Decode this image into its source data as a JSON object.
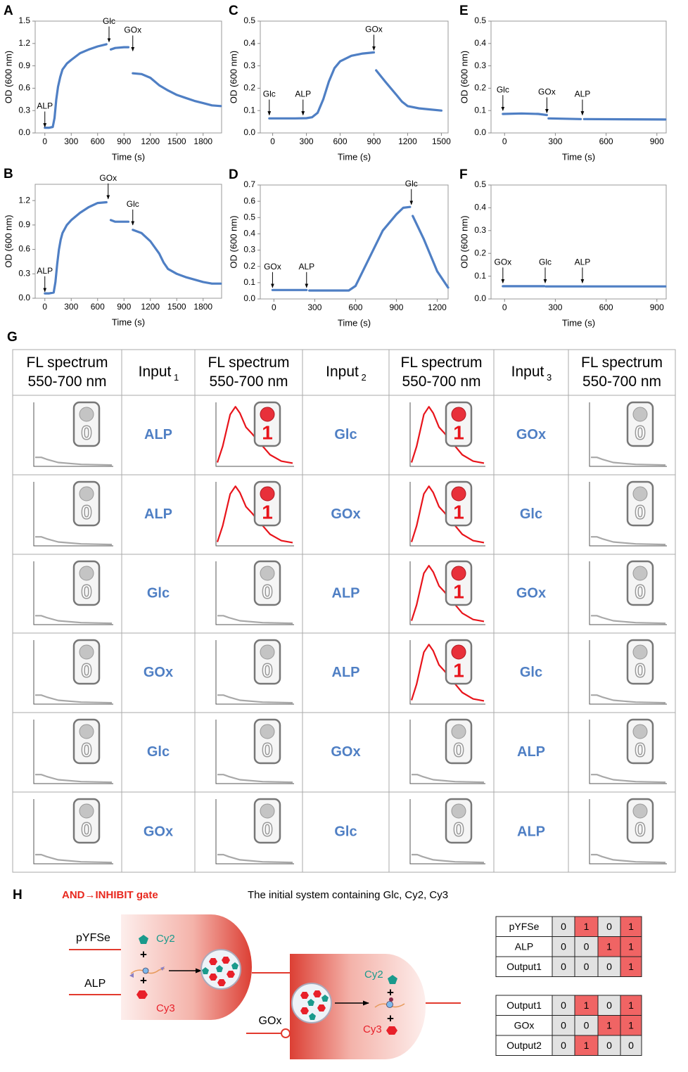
{
  "chart_data": [
    {
      "type": "line",
      "label": "A",
      "xlabel": "Time (s)",
      "ylabel": "OD (600 nm)",
      "color": "#4f7fc4",
      "xlim": [
        -110,
        2010
      ],
      "ylim": [
        0,
        1.5
      ],
      "xticks": [
        0,
        300,
        600,
        900,
        1200,
        1500,
        1800
      ],
      "yticks": [
        {
          "value": 0,
          "label": "0.0"
        },
        0.3,
        0.6,
        0.9,
        1.2,
        1.5
      ],
      "x": [
        0,
        50,
        90,
        110,
        130,
        150,
        175,
        200,
        250,
        300,
        400,
        500,
        600,
        700,
        720,
        750,
        800,
        900,
        950,
        980,
        1000,
        1100,
        1200,
        1300,
        1400,
        1500,
        1600,
        1700,
        1800,
        1900,
        2000
      ],
      "values": [
        0.07,
        0.07,
        0.08,
        0.2,
        0.45,
        0.62,
        0.75,
        0.85,
        0.93,
        0.98,
        1.07,
        1.12,
        1.16,
        1.19,
        null,
        1.12,
        1.14,
        1.15,
        1.15,
        null,
        0.8,
        0.79,
        0.74,
        0.64,
        0.57,
        0.51,
        0.47,
        0.43,
        0.4,
        0.37,
        0.36
      ],
      "annotations": [
        {
          "text": "ALP",
          "x": 0,
          "y": 0.08
        },
        {
          "text": "Glc",
          "x": 730,
          "y": 1.22
        },
        {
          "text": "GOx",
          "x": 1000,
          "y": 1.1
        }
      ]
    },
    {
      "type": "line",
      "label": "B",
      "xlabel": "Time (s)",
      "ylabel": "OD (600 nm)",
      "color": "#4f7fc4",
      "xlim": [
        -110,
        2010
      ],
      "ylim": [
        0,
        1.4
      ],
      "xticks": [
        0,
        300,
        600,
        900,
        1200,
        1500,
        1800
      ],
      "yticks": [
        {
          "value": 0,
          "label": "0.0"
        },
        0.3,
        0.6,
        0.9,
        1.2
      ],
      "x": [
        0,
        50,
        100,
        120,
        140,
        160,
        180,
        200,
        250,
        300,
        400,
        500,
        600,
        700,
        720,
        750,
        800,
        900,
        950,
        980,
        1000,
        1100,
        1200,
        1300,
        1350,
        1400,
        1500,
        1600,
        1700,
        1800,
        1900,
        2000
      ],
      "values": [
        0.06,
        0.06,
        0.07,
        0.2,
        0.42,
        0.6,
        0.72,
        0.8,
        0.9,
        0.96,
        1.05,
        1.12,
        1.17,
        1.18,
        null,
        0.96,
        0.94,
        0.94,
        0.94,
        null,
        0.84,
        0.8,
        0.7,
        0.55,
        0.44,
        0.36,
        0.3,
        0.26,
        0.23,
        0.2,
        0.18,
        0.18
      ],
      "annotations": [
        {
          "text": "ALP",
          "x": 0,
          "y": 0.08
        },
        {
          "text": "GOx",
          "x": 720,
          "y": 1.22
        },
        {
          "text": "Glc",
          "x": 1000,
          "y": 0.9
        }
      ]
    },
    {
      "type": "line",
      "label": "C",
      "xlabel": "Time (s)",
      "ylabel": "OD (600 nm)",
      "color": "#4f7fc4",
      "xlim": [
        -110,
        1560
      ],
      "ylim": [
        0,
        0.5
      ],
      "xticks": [
        0,
        300,
        600,
        900,
        1200,
        1500
      ],
      "yticks": [
        {
          "value": 0,
          "label": "0.0"
        },
        0.1,
        0.2,
        0.3,
        0.4,
        0.5
      ],
      "x": [
        -30,
        100,
        200,
        300,
        350,
        400,
        450,
        500,
        550,
        600,
        700,
        800,
        900,
        910,
        920,
        1000,
        1100,
        1150,
        1200,
        1300,
        1400,
        1500
      ],
      "values": [
        0.065,
        0.065,
        0.065,
        0.066,
        0.07,
        0.09,
        0.15,
        0.23,
        0.29,
        0.32,
        0.345,
        0.355,
        0.36,
        null,
        0.28,
        0.23,
        0.17,
        0.14,
        0.12,
        0.11,
        0.105,
        0.1
      ],
      "annotations": [
        {
          "text": "Glc",
          "x": -30,
          "y": 0.08
        },
        {
          "text": "ALP",
          "x": 270,
          "y": 0.08
        },
        {
          "text": "GOx",
          "x": 900,
          "y": 0.37
        }
      ]
    },
    {
      "type": "line",
      "label": "D",
      "xlabel": "Time (s)",
      "ylabel": "OD (600 nm)",
      "color": "#4f7fc4",
      "xlim": [
        -100,
        1280
      ],
      "ylim": [
        0,
        0.7
      ],
      "xticks": [
        0,
        300,
        600,
        900,
        1200
      ],
      "yticks": [
        {
          "value": 0,
          "label": "0.0"
        },
        0.1,
        0.2,
        0.3,
        0.4,
        0.5,
        0.6,
        0.7
      ],
      "x": [
        -10,
        100,
        240,
        250,
        260,
        400,
        550,
        600,
        700,
        800,
        900,
        950,
        1000,
        1010,
        1020,
        1100,
        1200,
        1280
      ],
      "values": [
        0.055,
        0.055,
        0.055,
        null,
        0.052,
        0.052,
        0.052,
        0.08,
        0.25,
        0.42,
        0.52,
        0.56,
        0.565,
        null,
        0.51,
        0.37,
        0.17,
        0.07
      ],
      "annotations": [
        {
          "text": "GOx",
          "x": -10,
          "y": 0.07
        },
        {
          "text": "ALP",
          "x": 240,
          "y": 0.07
        },
        {
          "text": "Glc",
          "x": 1010,
          "y": 0.58
        }
      ]
    },
    {
      "type": "line",
      "label": "E",
      "xlabel": "Time (s)",
      "ylabel": "OD (600 nm)",
      "color": "#4f7fc4",
      "xlim": [
        -80,
        955
      ],
      "ylim": [
        0,
        0.5
      ],
      "xticks": [
        0,
        300,
        600,
        900
      ],
      "yticks": [
        {
          "value": 0,
          "label": "0.0"
        },
        0.1,
        0.2,
        0.3,
        0.4,
        0.5
      ],
      "x": [
        -10,
        100,
        200,
        250,
        255,
        260,
        450,
        460,
        470,
        950
      ],
      "values": [
        0.085,
        0.087,
        0.085,
        0.08,
        null,
        0.065,
        0.062,
        null,
        0.062,
        0.06
      ],
      "annotations": [
        {
          "text": "Glc",
          "x": -10,
          "y": 0.1
        },
        {
          "text": "GOx",
          "x": 250,
          "y": 0.09
        },
        {
          "text": "ALP",
          "x": 460,
          "y": 0.08
        }
      ]
    },
    {
      "type": "line",
      "label": "F",
      "xlabel": "Time (s)",
      "ylabel": "OD (600 nm)",
      "color": "#4f7fc4",
      "xlim": [
        -80,
        955
      ],
      "ylim": [
        0,
        0.5
      ],
      "xticks": [
        0,
        300,
        600,
        900
      ],
      "yticks": [
        {
          "value": 0,
          "label": "0.0"
        },
        0.1,
        0.2,
        0.3,
        0.4,
        0.5
      ],
      "x": [
        -10,
        235,
        240,
        245,
        455,
        460,
        465,
        950
      ],
      "values": [
        0.056,
        0.056,
        null,
        0.055,
        0.055,
        null,
        0.055,
        0.055
      ],
      "annotations": [
        {
          "text": "GOx",
          "x": -10,
          "y": 0.07
        },
        {
          "text": "Glc",
          "x": 240,
          "y": 0.07
        },
        {
          "text": "ALP",
          "x": 460,
          "y": 0.07
        }
      ]
    }
  ],
  "table_g": {
    "label": "G",
    "header": [
      {
        "lines": [
          "FL spectrum",
          "550-700 nm"
        ]
      },
      {
        "text": "Input",
        "sub": "1"
      },
      {
        "lines": [
          "FL spectrum",
          "550-700 nm"
        ]
      },
      {
        "text": "Input",
        "sub": "2"
      },
      {
        "lines": [
          "FL spectrum",
          "550-700 nm"
        ]
      },
      {
        "text": "Input",
        "sub": "3"
      },
      {
        "lines": [
          "FL spectrum",
          "550-700 nm"
        ]
      }
    ],
    "rows": [
      [
        "0",
        "ALP",
        "1",
        "Glc",
        "1",
        "GOx",
        "0"
      ],
      [
        "0",
        "ALP",
        "1",
        "GOx",
        "1",
        "Glc",
        "0"
      ],
      [
        "0",
        "Glc",
        "0",
        "ALP",
        "1",
        "GOx",
        "0"
      ],
      [
        "0",
        "GOx",
        "0",
        "ALP",
        "1",
        "Glc",
        "0"
      ],
      [
        "0",
        "Glc",
        "0",
        "GOx",
        "0",
        "ALP",
        "0"
      ],
      [
        "0",
        "GOx",
        "0",
        "Glc",
        "0",
        "ALP",
        "0"
      ]
    ]
  },
  "diagram_h": {
    "label": "H",
    "title": "AND→INHIBIT gate",
    "subtitle": "The initial system containing Glc, Cy2, Cy3",
    "gate1": {
      "input1": "pYFSe",
      "input2": "ALP",
      "cy2": "Cy2",
      "cy3": "Cy3",
      "plus": "+"
    },
    "gate2": {
      "inhibitor": "GOx",
      "cy2": "Cy2",
      "cy3": "Cy3",
      "plus": "+"
    },
    "truth_tables": [
      {
        "rows": [
          [
            "pYFSe",
            0,
            1,
            0,
            1
          ],
          [
            "ALP",
            0,
            0,
            1,
            1
          ],
          [
            "Output1",
            0,
            0,
            0,
            1
          ]
        ]
      },
      {
        "rows": [
          [
            "Output1",
            0,
            1,
            0,
            1
          ],
          [
            "GOx",
            0,
            0,
            1,
            1
          ],
          [
            "Output2",
            0,
            1,
            0,
            0
          ]
        ]
      }
    ]
  }
}
